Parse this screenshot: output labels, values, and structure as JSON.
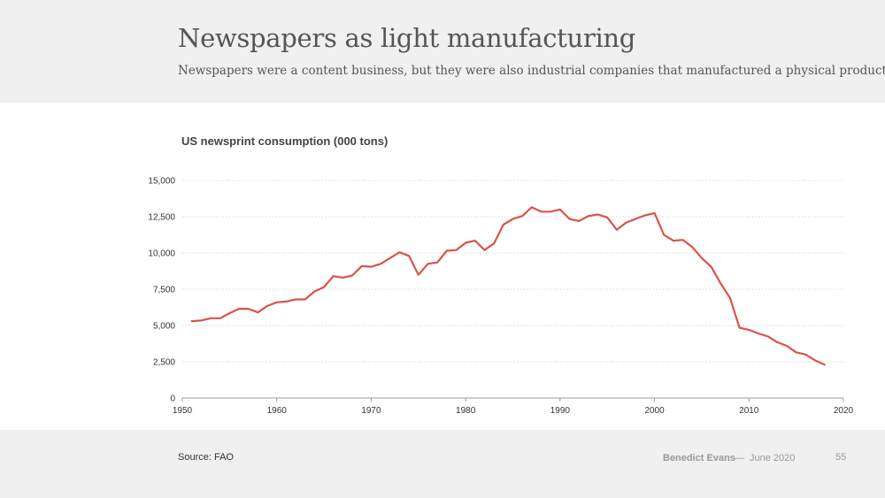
{
  "slide": {
    "title": "Newspapers as light manufacturing",
    "subtitle": "Newspapers were a content business, but they were also industrial companies that manufactured a physical product"
  },
  "footer": {
    "source": "Source: FAO",
    "author": "Benedict Evans",
    "separator": "—",
    "date": "June 2020",
    "page": "55"
  },
  "colors": {
    "line": "#d9534a",
    "grid": "#cccccc",
    "axis": "#999999"
  },
  "chart_data": {
    "type": "line",
    "title": "US newsprint consumption (000 tons)",
    "xlabel": "",
    "ylabel": "",
    "xlim": [
      1950,
      2020
    ],
    "ylim": [
      0,
      15000
    ],
    "xticks": [
      1950,
      1960,
      1970,
      1980,
      1990,
      2000,
      2010,
      2020
    ],
    "yticks": [
      0,
      2500,
      5000,
      7500,
      10000,
      12500,
      15000
    ],
    "ytick_labels": [
      "0",
      "2,500",
      "5,000",
      "7,500",
      "10,000",
      "12,500",
      "15,000"
    ],
    "grid": true,
    "legend": "none",
    "series": [
      {
        "x": [
          1951,
          1952,
          1953,
          1954,
          1955,
          1956,
          1957,
          1958,
          1959,
          1960,
          1961,
          1962,
          1963,
          1964,
          1965,
          1966,
          1967,
          1968,
          1969,
          1970,
          1971,
          1972,
          1973,
          1974,
          1975,
          1976,
          1977,
          1978,
          1979,
          1980,
          1981,
          1982,
          1983,
          1984,
          1985,
          1986,
          1987,
          1988,
          1989,
          1990,
          1991,
          1992,
          1993,
          1994,
          1995,
          1996,
          1997,
          1998,
          1999,
          2000,
          2001,
          2002,
          2003,
          2004,
          2005,
          2006,
          2007,
          2008,
          2009,
          2010,
          2011,
          2012,
          2013,
          2014,
          2015,
          2016,
          2017,
          2018
        ],
        "values": [
          5300,
          5350,
          5500,
          5500,
          5850,
          6150,
          6150,
          5900,
          6350,
          6600,
          6650,
          6800,
          6800,
          7350,
          7650,
          8400,
          8300,
          8450,
          9100,
          9050,
          9250,
          9650,
          10050,
          9800,
          8500,
          9250,
          9350,
          10150,
          10200,
          10700,
          10850,
          10200,
          10650,
          11950,
          12350,
          12550,
          13150,
          12850,
          12850,
          13000,
          12350,
          12200,
          12550,
          12650,
          12450,
          11600,
          12100,
          12350,
          12600,
          12750,
          11250,
          10850,
          10900,
          10400,
          9650,
          9050,
          7900,
          6900,
          4850,
          4700,
          4450,
          4250,
          3850,
          3600,
          3150,
          3000,
          2600,
          2300
        ]
      }
    ]
  }
}
